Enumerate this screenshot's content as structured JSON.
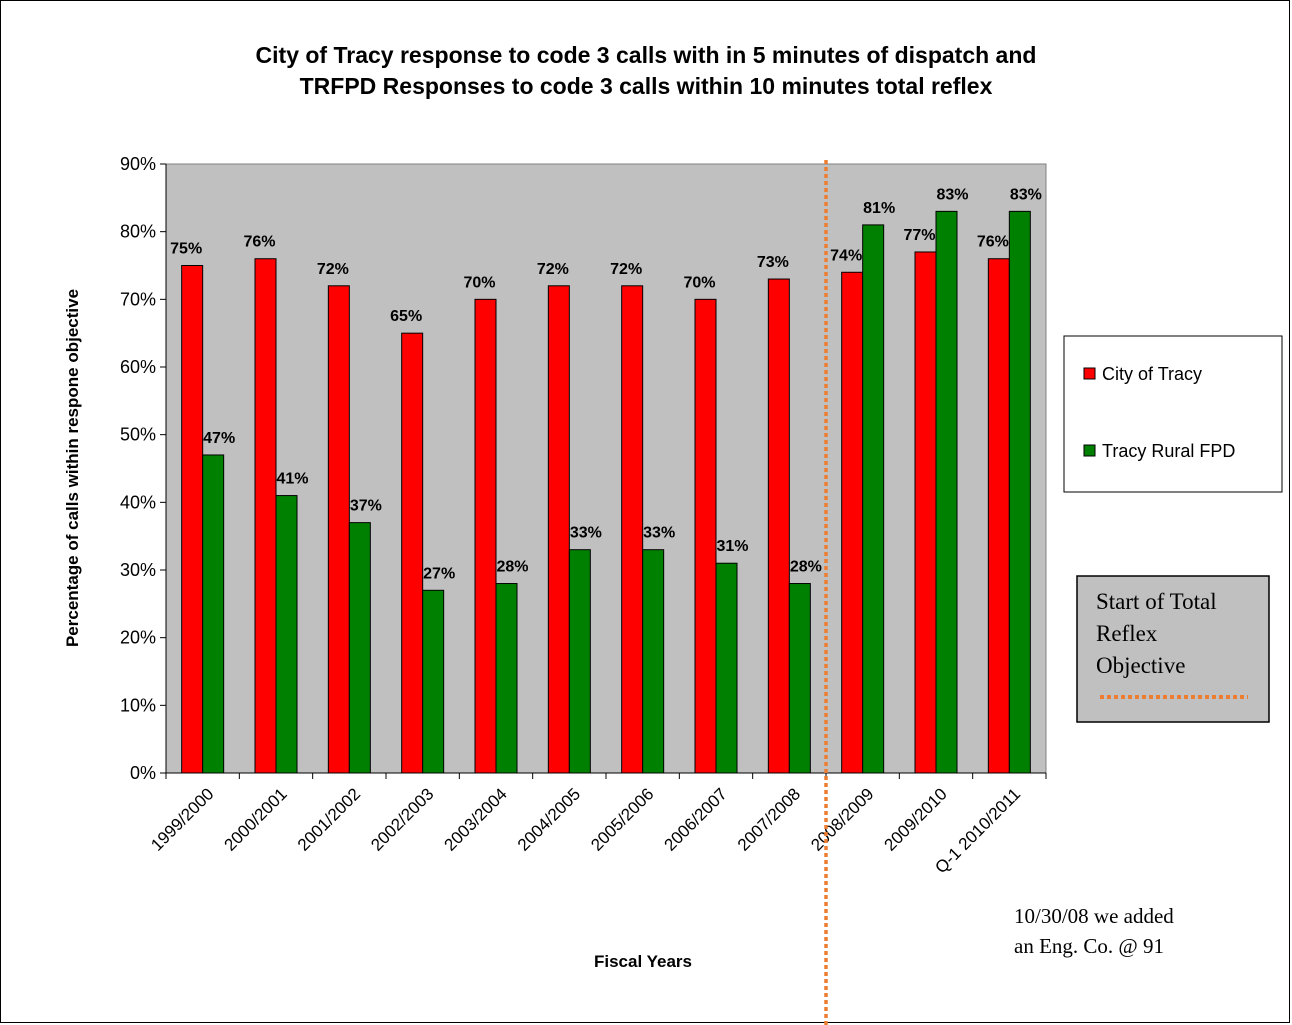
{
  "chart_data": {
    "type": "bar",
    "title_lines": [
      "City of Tracy response to code 3 calls with in 5 minutes of dispatch and",
      "TRFPD Responses to code 3 calls within 10 minutes total reflex"
    ],
    "xlabel": "Fiscal Years",
    "ylabel": "Percentage of calls within respone objective",
    "ylim": [
      0,
      90
    ],
    "yticks": [
      "0%",
      "10%",
      "20%",
      "30%",
      "40%",
      "50%",
      "60%",
      "70%",
      "80%",
      "90%"
    ],
    "categories": [
      "1999/2000",
      "2000/2001",
      "2001/2002",
      "2002/2003",
      "2003/2004",
      "2004/2005",
      "2005/2006",
      "2006/2007",
      "2007/2008",
      "2008/2009",
      "2009/2010",
      "Q-1 2010/2011"
    ],
    "series": [
      {
        "name": "City of Tracy",
        "color": "#ff0000",
        "values": [
          75,
          76,
          72,
          65,
          70,
          72,
          72,
          70,
          73,
          74,
          77,
          76
        ],
        "labels": [
          "75%",
          "76%",
          "72%",
          "65%",
          "70%",
          "72%",
          "72%",
          "70%",
          "73%",
          "74%",
          "77%",
          "76%"
        ]
      },
      {
        "name": "Tracy Rural FPD",
        "color": "#008000",
        "values": [
          47,
          41,
          37,
          27,
          28,
          33,
          33,
          31,
          28,
          81,
          83,
          83
        ],
        "labels": [
          "47%",
          "41%",
          "37%",
          "27%",
          "28%",
          "33%",
          "33%",
          "31%",
          "28%",
          "81%",
          "83%",
          "83%"
        ]
      }
    ],
    "plot_background": "#c0c0c0",
    "grid": false,
    "legend_position": "right",
    "annotation_box": {
      "lines": [
        "Start of Total",
        "Reflex",
        "Objective"
      ],
      "line_color": "#ed7d31"
    },
    "divider_color": "#ed7d31",
    "note_lines": [
      "10/30/08 we added",
      "an Eng. Co. @ 91"
    ]
  }
}
